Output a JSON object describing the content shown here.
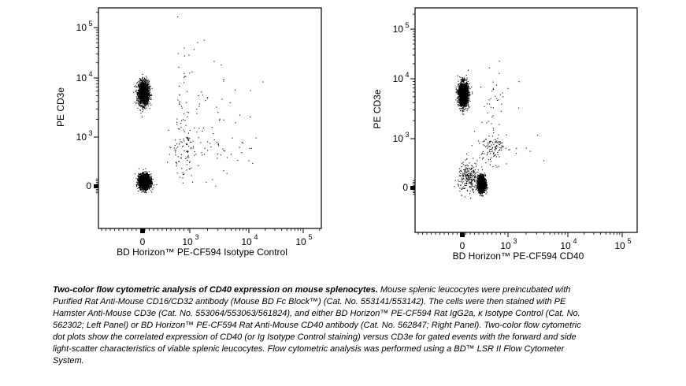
{
  "chart_data": [
    {
      "type": "scatter",
      "panel": "left",
      "xlabel": "BD Horizon™ PE-CF594 Isotype Control",
      "ylabel": "PE CD3e",
      "scale": "biexponential",
      "x_ticks": [
        {
          "mantissa": "0",
          "exp": ""
        },
        {
          "mantissa": "10",
          "exp": "3"
        },
        {
          "mantissa": "10",
          "exp": "4"
        },
        {
          "mantissa": "10",
          "exp": "5"
        }
      ],
      "y_ticks": [
        {
          "mantissa": "0",
          "exp": ""
        },
        {
          "mantissa": "10",
          "exp": "3"
        },
        {
          "mantissa": "10",
          "exp": "4"
        },
        {
          "mantissa": "10",
          "exp": "5"
        }
      ],
      "populations": [
        {
          "cx": 0.05,
          "cy": 3.75,
          "sx": 0.17,
          "sy": 0.1,
          "weight": 0.42
        },
        {
          "cx": 0.1,
          "cy": 0.3,
          "sx": 0.18,
          "sy": 0.22,
          "weight": 0.53
        },
        {
          "cx": 2.8,
          "cy": 2.6,
          "sx": 0.6,
          "sy": 1.0,
          "weight": 0.05
        }
      ]
    },
    {
      "type": "scatter",
      "panel": "right",
      "xlabel": "BD Horizon™ PE-CF594 CD40",
      "ylabel": "PE CD3e",
      "scale": "biexponential",
      "x_ticks": [
        {
          "mantissa": "0",
          "exp": ""
        },
        {
          "mantissa": "10",
          "exp": "3"
        },
        {
          "mantissa": "10",
          "exp": "4"
        },
        {
          "mantissa": "10",
          "exp": "5"
        }
      ],
      "y_ticks": [
        {
          "mantissa": "0",
          "exp": ""
        },
        {
          "mantissa": "10",
          "exp": "3"
        },
        {
          "mantissa": "10",
          "exp": "4"
        },
        {
          "mantissa": "10",
          "exp": "5"
        }
      ],
      "populations": [
        {
          "cx": 0.05,
          "cy": 3.75,
          "sx": 0.16,
          "sy": 0.1,
          "weight": 0.42
        },
        {
          "cx": 1.25,
          "cy": 0.25,
          "sx": 0.12,
          "sy": 0.24,
          "weight": 0.48
        },
        {
          "cx": 0.4,
          "cy": 0.6,
          "sx": 0.35,
          "sy": 0.45,
          "weight": 0.06
        },
        {
          "cx": 2.0,
          "cy": 2.7,
          "sx": 0.5,
          "sy": 0.6,
          "weight": 0.04
        }
      ]
    }
  ],
  "caption": {
    "title": "Two-color flow cytometric analysis of CD40 expression on mouse splenocytes.",
    "body": " Mouse splenic leucocytes were preincubated with Purified Rat Anti-Mouse CD16/CD32 antibody (Mouse BD Fc Block™) (Cat. No. 553141/553142). The cells were then stained with PE Hamster Anti-Mouse CD3e (Cat. No. 553064/553063/561824), and either BD Horizon™ PE-CF594 Rat IgG2a, κ Isotype Control (Cat. No. 562302; Left Panel) or BD Horizon™ PE-CF594 Rat Anti-Mouse CD40 antibody (Cat. No. 562847; Right Panel). Two-color flow cytometric dot plots show the correlated expression of CD40 (or Ig Isotype Control staining) versus CD3e for gated events with the forward and side light-scatter characteristics of viable splenic leucocytes. Flow cytometric analysis was performed using a BD™ LSR II Flow Cytometer System."
  }
}
